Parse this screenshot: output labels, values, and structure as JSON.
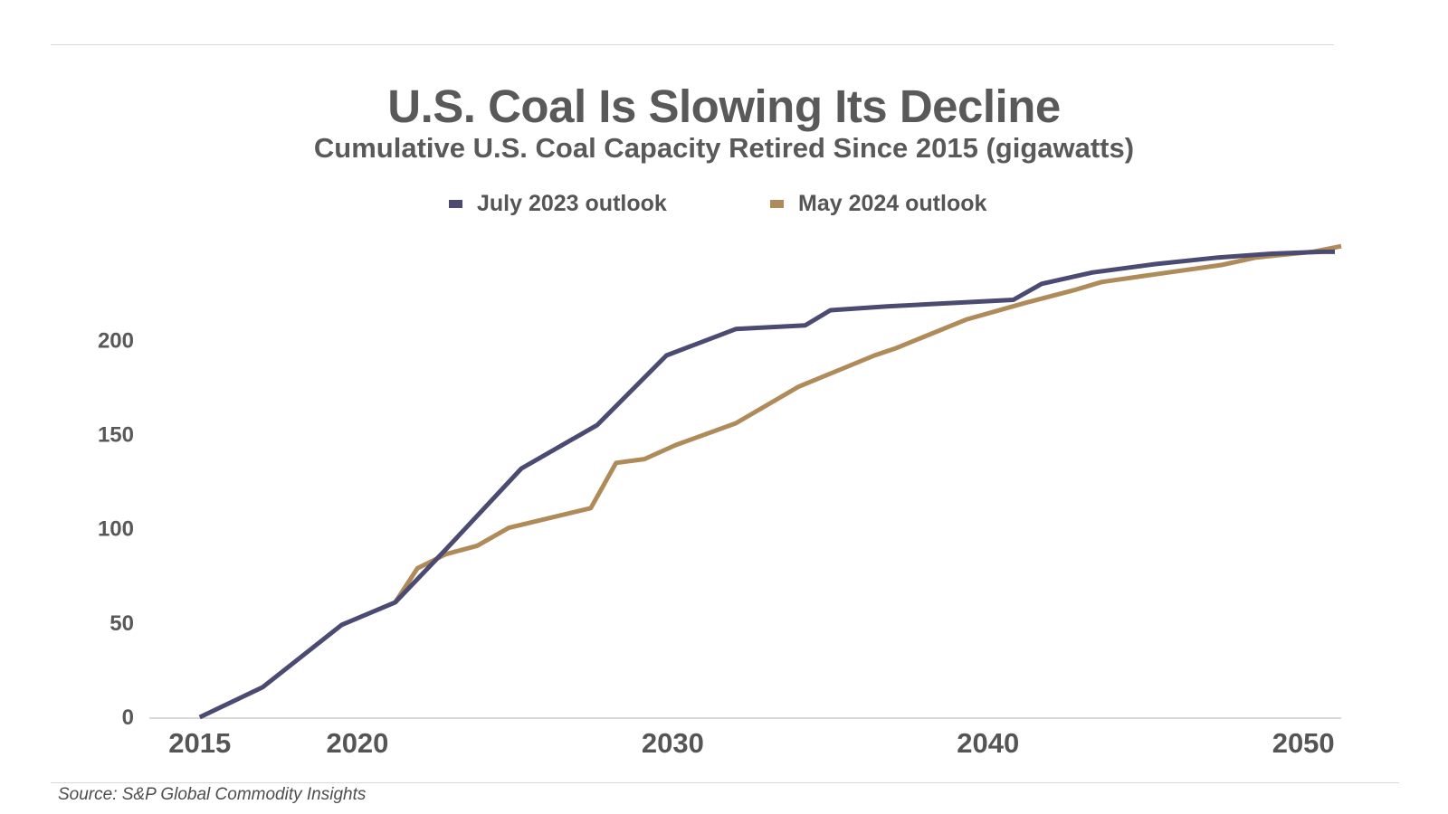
{
  "header": {
    "title": "U.S. Coal Is Slowing Its Decline",
    "subtitle": "Cumulative U.S. Coal Capacity Retired Since 2015 (gigawatts)"
  },
  "footer": {
    "source": "Source: S&P Global Commodity Insights"
  },
  "colors": {
    "july_2023": "#4a4a72",
    "may_2024": "#b08b5a",
    "axis": "#d9d9d9",
    "text": "#595959"
  },
  "chart_data": {
    "type": "line",
    "title": "U.S. Coal Is Slowing Its Decline",
    "subtitle": "Cumulative U.S. Coal Capacity Retired Since 2015 (gigawatts)",
    "xlabel": "",
    "ylabel": "",
    "xlim": [
      2013.4,
      2051.2
    ],
    "ylim": [
      0,
      240
    ],
    "x_ticks": [
      2015,
      2020,
      2030,
      2040,
      2050
    ],
    "y_ticks": [
      0,
      50,
      100,
      150,
      200
    ],
    "grid": false,
    "legend_position": "top-center",
    "series": [
      {
        "name": "July 2023 outlook",
        "color": "#4a4a72",
        "x": [
          2015,
          2017,
          2019.5,
          2021.2,
          2022.8,
          2025.2,
          2027.6,
          2029.8,
          2032,
          2034.2,
          2035,
          2036.8,
          2039,
          2040.8,
          2041.7,
          2043.3,
          2045.3,
          2047.3,
          2049,
          2050.6,
          2051
        ],
        "y": [
          0,
          16,
          49,
          61,
          89,
          132,
          155,
          192,
          206,
          208,
          216,
          218,
          220,
          221.5,
          230,
          236,
          240.5,
          244,
          246,
          247,
          247
        ]
      },
      {
        "name": "May 2024 outlook",
        "color": "#b08b5a",
        "x": [
          2021.2,
          2021.9,
          2022.8,
          2023.8,
          2024.8,
          2027.4,
          2028.2,
          2029.1,
          2030.1,
          2032,
          2034,
          2036.4,
          2037.1,
          2039.3,
          2041.2,
          2042.7,
          2043.6,
          2045.7,
          2047.4,
          2048.5,
          2050.3,
          2051.2
        ],
        "y": [
          61,
          79,
          86.5,
          91,
          100.5,
          111,
          135,
          137,
          144.5,
          156,
          175.5,
          192,
          196,
          211,
          220,
          226.5,
          231,
          236,
          240,
          244,
          247,
          250
        ]
      }
    ]
  }
}
